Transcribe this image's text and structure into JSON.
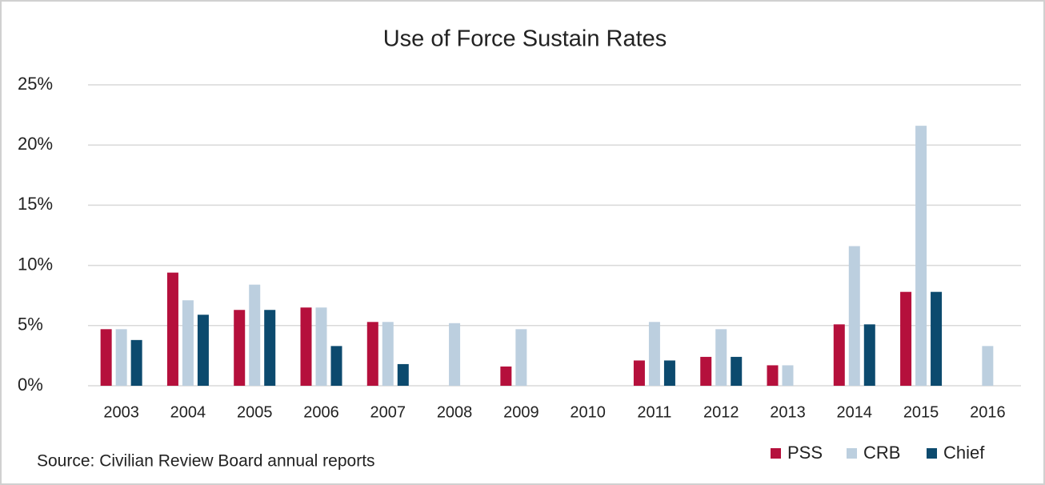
{
  "chart_data": {
    "type": "bar",
    "title": "Use of Force Sustain Rates",
    "source": "Source: Civilian Review Board annual reports",
    "categories": [
      "2003",
      "2004",
      "2005",
      "2006",
      "2007",
      "2008",
      "2009",
      "2010",
      "2011",
      "2012",
      "2013",
      "2014",
      "2015",
      "2016"
    ],
    "series": [
      {
        "name": "PSS",
        "color": "#b5103c",
        "values": [
          4.7,
          9.4,
          6.3,
          6.5,
          5.3,
          0,
          1.6,
          0,
          2.1,
          2.4,
          1.7,
          5.1,
          7.8,
          0
        ]
      },
      {
        "name": "CRB",
        "color": "#bccfdf",
        "values": [
          4.7,
          7.1,
          8.4,
          6.5,
          5.3,
          5.2,
          4.7,
          0,
          5.3,
          4.7,
          1.7,
          11.6,
          21.6,
          3.3
        ]
      },
      {
        "name": "Chief",
        "color": "#0c4a6e",
        "values": [
          3.8,
          5.9,
          6.3,
          3.3,
          1.8,
          0,
          0,
          0,
          2.1,
          2.4,
          0,
          5.1,
          7.8,
          0
        ]
      }
    ],
    "ylim": [
      0,
      25
    ],
    "yticks": [
      {
        "value": 0,
        "label": "0%"
      },
      {
        "value": 5,
        "label": "5%"
      },
      {
        "value": 10,
        "label": "10%"
      },
      {
        "value": 15,
        "label": "15%"
      },
      {
        "value": 20,
        "label": "20%"
      },
      {
        "value": 25,
        "label": "25%"
      }
    ],
    "grid": true,
    "legend": "bottom-right"
  }
}
